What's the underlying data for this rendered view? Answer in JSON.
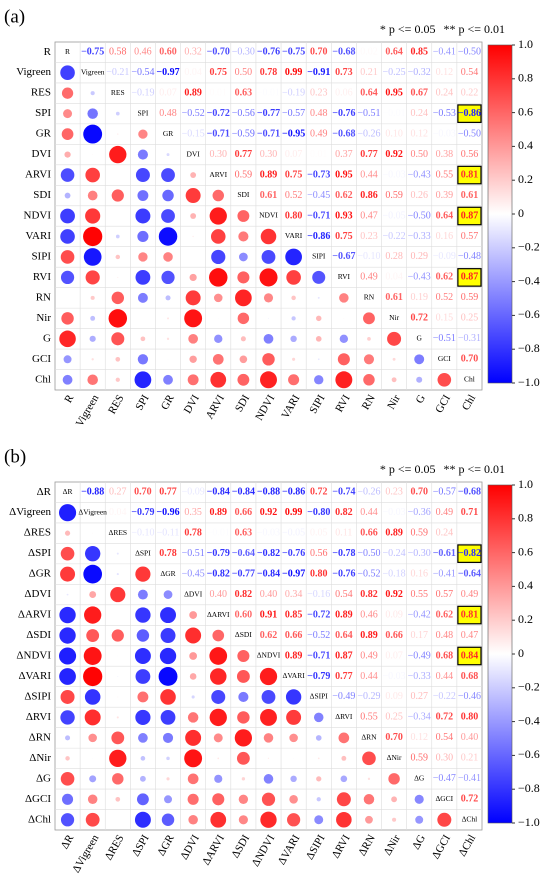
{
  "chart_data": [
    {
      "type": "correlation",
      "panel_label": "(a)",
      "note_1": "* p <= 0.05",
      "note_2": "** p <= 0.01",
      "labels": [
        "R",
        "Vigreen",
        "RES",
        "SPI",
        "GR",
        "DVI",
        "ARVI",
        "SDI",
        "NDVI",
        "VARI",
        "SIPI",
        "RVI",
        "RN",
        "Nir",
        "G",
        "GCI",
        "Chl"
      ],
      "values": [
        [
          -0.75,
          0.58,
          0.46,
          0.6,
          0.32,
          -0.7,
          -0.3,
          -0.76,
          -0.75,
          0.7,
          -0.68,
          0.02,
          0.64,
          0.85,
          -0.41,
          -0.5
        ],
        [
          -0.21,
          -0.54,
          -0.97,
          0.04,
          0.75,
          0.5,
          0.78,
          0.99,
          -0.91,
          0.73,
          0.21,
          -0.25,
          -0.32,
          0.12,
          0.54
        ],
        [
          -0.19,
          0.07,
          0.89,
          0.01,
          0.63,
          -0.01,
          -0.19,
          0.23,
          0.06,
          0.64,
          0.95,
          0.67,
          0.24,
          0.22
        ],
        [
          0.48,
          -0.52,
          -0.72,
          -0.56,
          -0.77,
          -0.57,
          0.48,
          -0.76,
          -0.51,
          -0.01,
          0.24,
          -0.53,
          -0.86
        ],
        [
          -0.15,
          -0.71,
          -0.59,
          -0.71,
          -0.95,
          0.49,
          -0.68,
          -0.26,
          0.1,
          0.12,
          -0.03,
          -0.5
        ],
        [
          0.3,
          0.77,
          0.3,
          0.07,
          0.01,
          0.37,
          0.77,
          0.92,
          0.5,
          0.38,
          0.56
        ],
        [
          0.59,
          0.89,
          0.75,
          -0.73,
          0.95,
          0.44,
          -0.03,
          -0.43,
          0.55,
          0.81
        ],
        [
          0.61,
          0.52,
          -0.45,
          0.62,
          0.86,
          0.59,
          0.26,
          0.39,
          0.61
        ],
        [
          0.8,
          -0.71,
          0.93,
          0.47,
          -0.05,
          -0.5,
          0.64,
          0.87
        ],
        [
          -0.86,
          0.75,
          0.23,
          -0.22,
          -0.33,
          0.16,
          0.57
        ],
        [
          -0.67,
          -0.1,
          0.28,
          0.29,
          -0.09,
          -0.48
        ],
        [
          0.49,
          0.04,
          -0.43,
          0.62,
          0.87
        ],
        [
          0.61,
          0.19,
          0.52,
          0.59
        ],
        [
          0.72,
          0.15,
          0.25
        ],
        [
          -0.51,
          -0.31
        ],
        [
          0.7
        ]
      ],
      "value_labels": [
        [
          "−0.75",
          "0.58",
          "0.46",
          "0.60",
          "0.32",
          "−0.70",
          "−0.30",
          "−0.76",
          "−0.75",
          "0.70",
          "−0.68",
          "0.02",
          "0.64",
          "0.85",
          "−0.41",
          "−0.50"
        ],
        [
          "−0.21",
          "−0.54",
          "−0.97",
          "0.04",
          "0.75",
          "0.50",
          "0.78",
          "0.99",
          "−0.91",
          "0.73",
          "0.21",
          "−0.25",
          "−0.32",
          "0.12",
          "0.54"
        ],
        [
          "−0.19",
          "0.07",
          "0.89",
          "0.01",
          "0.63",
          "−0.01",
          "−0.19",
          "0.23",
          "0.06",
          "0.64",
          "0.95",
          "0.67",
          "0.24",
          "0.22"
        ],
        [
          "0.48",
          "−0.52",
          "−0.72",
          "−0.56",
          "−0.77",
          "−0.57",
          "0.48",
          "−0.76",
          "−0.51",
          "−0.01",
          "0.24",
          "−0.53",
          "−0.86"
        ],
        [
          "−0.15",
          "−0.71",
          "−0.59",
          "−0.71",
          "−0.95",
          "0.49",
          "−0.68",
          "−0.26",
          "0.10",
          "0.12",
          "−0.03",
          "−0.50"
        ],
        [
          "0.30",
          "0.77",
          "0.30",
          "0.07",
          "0.01",
          "0.37",
          "0.77",
          "0.92",
          "0.50",
          "0.38",
          "0.56"
        ],
        [
          "0.59",
          "0.89",
          "0.75",
          "−0.73",
          "0.95",
          "0.44",
          "−0.03",
          "−0.43",
          "0.55",
          "0.81"
        ],
        [
          "0.61",
          "0.52",
          "−0.45",
          "0.62",
          "0.86",
          "0.59",
          "0.26",
          "0.39",
          "0.61"
        ],
        [
          "0.80",
          "−0.71",
          "0.93",
          "0.47",
          "−0.05",
          "−0.50",
          "0.64",
          "0.87"
        ],
        [
          "−0.86",
          "0.75",
          "0.23",
          "−0.22",
          "−0.33",
          "0.16",
          "0.57"
        ],
        [
          "−0.67",
          "−0.10",
          "0.28",
          "0.29",
          "−0.09",
          "−0.48"
        ],
        [
          "0.49",
          "0.04",
          "−0.43",
          "0.62",
          "0.87"
        ],
        [
          "0.61",
          "0.19",
          "0.52",
          "0.59"
        ],
        [
          "0.72",
          "0.15",
          "0.25"
        ],
        [
          "−0.51",
          "−0.31"
        ],
        [
          "0.70"
        ]
      ],
      "highlighted_rows": [
        3,
        6,
        8,
        11
      ],
      "colors": [
        "#0000ff",
        "#ffffff",
        "#ff0000"
      ],
      "clim": [
        -1,
        1
      ],
      "cticks": [
        {
          "value": 1,
          "label": "1.0"
        },
        0.8,
        0.6,
        0.4,
        0.2,
        0,
        {
          "value": -0.2,
          "label": "−0.2"
        },
        {
          "value": -0.4,
          "label": "−0.4"
        },
        {
          "value": -0.6,
          "label": "−0.6"
        },
        {
          "value": -0.8,
          "label": "−0.8"
        },
        {
          "value": -1,
          "label": "−1.0"
        }
      ]
    },
    {
      "type": "correlation",
      "panel_label": "(b)",
      "note_1": "* p <= 0.05",
      "note_2": "** p <= 0.01",
      "labels": [
        "ΔR",
        "ΔVigreen",
        "ΔRES",
        "ΔSPI",
        "ΔGR",
        "ΔDVI",
        "ΔARVI",
        "ΔSDI",
        "ΔNDVI",
        "ΔVARI",
        "ΔSIPI",
        "ΔRVI",
        "ΔRN",
        "ΔNir",
        "ΔG",
        "ΔGCI",
        "ΔChl"
      ],
      "values": [
        [
          -0.88,
          0.27,
          0.7,
          0.77,
          -0.09,
          -0.84,
          -0.84,
          -0.88,
          -0.86,
          0.72,
          -0.74,
          -0.26,
          0.23,
          0.7,
          -0.57,
          -0.68
        ],
        [
          0.04,
          -0.79,
          -0.96,
          0.35,
          0.89,
          0.66,
          0.92,
          0.99,
          -0.8,
          0.82,
          0.44,
          -0.03,
          -0.36,
          0.49,
          0.71
        ],
        [
          -0.1,
          -0.11,
          0.78,
          -0.01,
          0.63,
          -0.03,
          -0.05,
          0.05,
          0.11,
          0.66,
          0.89,
          0.59,
          0.24,
          0
        ],
        [
          0.78,
          -0.51,
          -0.79,
          -0.64,
          -0.82,
          -0.76,
          0.56,
          -0.78,
          -0.5,
          -0.24,
          -0.3,
          -0.61,
          -0.82
        ],
        [
          -0.45,
          -0.82,
          -0.77,
          -0.84,
          -0.97,
          0.8,
          -0.76,
          -0.52,
          -0.18,
          0.16,
          -0.41,
          -0.64
        ],
        [
          0.4,
          0.82,
          0.4,
          0.34,
          -0.16,
          0.54,
          0.82,
          0.92,
          0.55,
          0.57,
          0.49
        ],
        [
          0.6,
          0.91,
          0.85,
          -0.72,
          0.89,
          0.46,
          0.09,
          -0.42,
          0.62,
          0.81
        ],
        [
          0.62,
          0.66,
          -0.52,
          0.64,
          0.89,
          0.66,
          0.17,
          0.48,
          0.47
        ],
        [
          0.89,
          -0.71,
          0.87,
          0.49,
          0.07,
          -0.49,
          0.68,
          0.84
        ],
        [
          -0.79,
          0.77,
          0.44,
          -0.03,
          -0.33,
          0.44,
          0.68
        ],
        [
          -0.49,
          -0.29,
          0.09,
          0.27,
          -0.22,
          -0.46
        ],
        [
          0.55,
          0.25,
          -0.34,
          0.72,
          0.8
        ],
        [
          0.7,
          0.12,
          0.54,
          0.4
        ],
        [
          0.59,
          0.3,
          0.21
        ],
        [
          -0.47,
          -0.41
        ],
        [
          0.72
        ]
      ],
      "value_labels": [
        [
          "−0.88",
          "0.27",
          "0.70",
          "0.77",
          "−0.09",
          "−0.84",
          "−0.84",
          "−0.88",
          "−0.86",
          "0.72",
          "−0.74",
          "−0.26",
          "0.23",
          "0.70",
          "−0.57",
          "−0.68"
        ],
        [
          "0.04",
          "−0.79",
          "−0.96",
          "0.35",
          "0.89",
          "0.66",
          "0.92",
          "0.99",
          "−0.80",
          "0.82",
          "0.44",
          "−0.03",
          "−0.36",
          "0.49",
          "0.71"
        ],
        [
          "−0.10",
          "−0.11",
          "0.78",
          "−0.01",
          "0.63",
          "−0.03",
          "−0.05",
          "0.05",
          "0.11",
          "0.66",
          "0.89",
          "0.59",
          "0.24",
          "−0.00"
        ],
        [
          "0.78",
          "−0.51",
          "−0.79",
          "−0.64",
          "−0.82",
          "−0.76",
          "0.56",
          "−0.78",
          "−0.50",
          "−0.24",
          "−0.30",
          "−0.61",
          "−0.82"
        ],
        [
          "−0.45",
          "−0.82",
          "−0.77",
          "−0.84",
          "−0.97",
          "0.80",
          "−0.76",
          "−0.52",
          "−0.18",
          "0.16",
          "−0.41",
          "−0.64"
        ],
        [
          "0.40",
          "0.82",
          "0.40",
          "0.34",
          "−0.16",
          "0.54",
          "0.82",
          "0.92",
          "0.55",
          "0.57",
          "0.49"
        ],
        [
          "0.60",
          "0.91",
          "0.85",
          "−0.72",
          "0.89",
          "0.46",
          "0.09",
          "−0.42",
          "0.62",
          "0.81"
        ],
        [
          "0.62",
          "0.66",
          "−0.52",
          "0.64",
          "0.89",
          "0.66",
          "0.17",
          "0.48",
          "0.47"
        ],
        [
          "0.89",
          "−0.71",
          "0.87",
          "0.49",
          "0.07",
          "−0.49",
          "0.68",
          "0.84"
        ],
        [
          "−0.79",
          "0.77",
          "0.44",
          "−0.03",
          "−0.33",
          "0.44",
          "0.68"
        ],
        [
          "−0.49",
          "−0.29",
          "0.09",
          "0.27",
          "−0.22",
          "−0.46"
        ],
        [
          "0.55",
          "0.25",
          "−0.34",
          "0.72",
          "0.80"
        ],
        [
          "0.70",
          "0.12",
          "0.54",
          "0.40"
        ],
        [
          "0.59",
          "0.30",
          "0.21"
        ],
        [
          "−0.47",
          "−0.41"
        ],
        [
          "0.72"
        ]
      ],
      "highlighted_rows": [
        3,
        6,
        8
      ],
      "colors": [
        "#0000ff",
        "#ffffff",
        "#ff0000"
      ],
      "clim": [
        -1,
        1
      ],
      "cticks": [
        {
          "value": 1,
          "label": "1.0"
        },
        0.8,
        0.6,
        0.4,
        0.2,
        0,
        {
          "value": -0.2,
          "label": "−0.2"
        },
        {
          "value": -0.4,
          "label": "−0.4"
        },
        {
          "value": -0.6,
          "label": "−0.6"
        },
        {
          "value": -0.8,
          "label": "−0.8"
        },
        {
          "value": -1,
          "label": "−1.0"
        }
      ]
    }
  ]
}
